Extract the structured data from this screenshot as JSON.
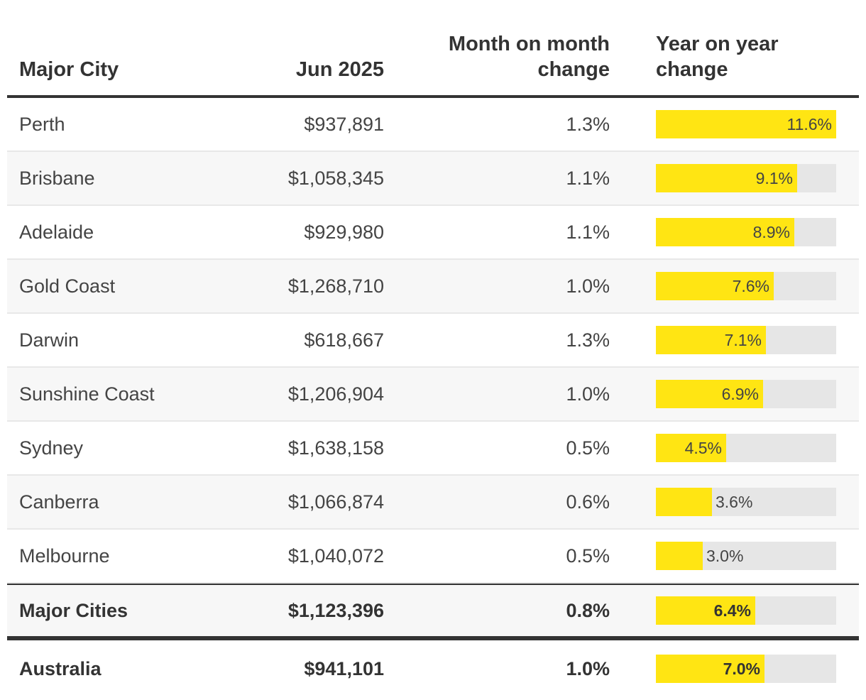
{
  "chart_data": {
    "type": "table",
    "columns": [
      "Major City",
      "Jun 2025",
      "Month on month change",
      "Year on year change"
    ],
    "header": {
      "city": "Major City",
      "price": "Jun 2025",
      "mom_line1": "Month on month",
      "mom_line2": "change",
      "yoy_line1": "Year on year",
      "yoy_line2": "change"
    },
    "bar_max_percent": 11.6,
    "bar_color": "#ffe513",
    "track_color": "#e6e6e6",
    "rows": [
      {
        "city": "Perth",
        "price": "$937,891",
        "mom": "1.3%",
        "yoy": "11.6%",
        "yoy_value": 11.6
      },
      {
        "city": "Brisbane",
        "price": "$1,058,345",
        "mom": "1.1%",
        "yoy": "9.1%",
        "yoy_value": 9.1
      },
      {
        "city": "Adelaide",
        "price": "$929,980",
        "mom": "1.1%",
        "yoy": "8.9%",
        "yoy_value": 8.9
      },
      {
        "city": "Gold Coast",
        "price": "$1,268,710",
        "mom": "1.0%",
        "yoy": "7.6%",
        "yoy_value": 7.6
      },
      {
        "city": "Darwin",
        "price": "$618,667",
        "mom": "1.3%",
        "yoy": "7.1%",
        "yoy_value": 7.1
      },
      {
        "city": "Sunshine Coast",
        "price": "$1,206,904",
        "mom": "1.0%",
        "yoy": "6.9%",
        "yoy_value": 6.9
      },
      {
        "city": "Sydney",
        "price": "$1,638,158",
        "mom": "0.5%",
        "yoy": "4.5%",
        "yoy_value": 4.5
      },
      {
        "city": "Canberra",
        "price": "$1,066,874",
        "mom": "0.6%",
        "yoy": "3.6%",
        "yoy_value": 3.6
      },
      {
        "city": "Melbourne",
        "price": "$1,040,072",
        "mom": "0.5%",
        "yoy": "3.0%",
        "yoy_value": 3.0
      }
    ],
    "totals": [
      {
        "city": "Major Cities",
        "price": "$1,123,396",
        "mom": "0.8%",
        "yoy": "6.4%",
        "yoy_value": 6.4
      },
      {
        "city": "Australia",
        "price": "$941,101",
        "mom": "1.0%",
        "yoy": "7.0%",
        "yoy_value": 7.0
      }
    ]
  }
}
